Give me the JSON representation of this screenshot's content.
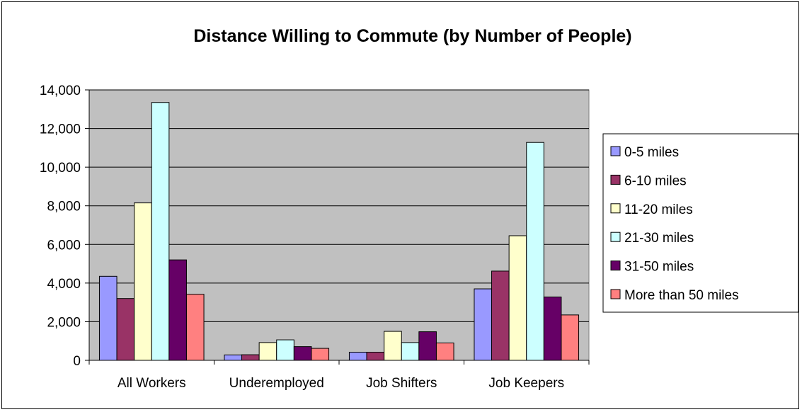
{
  "chart_data": {
    "type": "bar",
    "title": "Distance Willing to Commute (by Number of People)",
    "xlabel": "",
    "ylabel": "",
    "categories": [
      "All Workers",
      "Underemployed",
      "Job Shifters",
      "Job Keepers"
    ],
    "ylim": [
      0,
      14000
    ],
    "yticks": [
      0,
      2000,
      4000,
      6000,
      8000,
      10000,
      12000,
      14000
    ],
    "ytick_labels": [
      "0",
      "2,000",
      "4,000",
      "6,000",
      "8,000",
      "10,000",
      "12,000",
      "14,000"
    ],
    "grid": true,
    "legend_position": "right",
    "plot_background": "#c0c0c0",
    "series": [
      {
        "name": "0-5 miles",
        "color": "#9999ff",
        "values": [
          4350,
          280,
          420,
          3700
        ]
      },
      {
        "name": "6-10 miles",
        "color": "#993366",
        "values": [
          3200,
          290,
          420,
          4620
        ]
      },
      {
        "name": "11-20 miles",
        "color": "#ffffcc",
        "values": [
          8150,
          920,
          1500,
          6450
        ]
      },
      {
        "name": "21-30 miles",
        "color": "#ccffff",
        "values": [
          13350,
          1060,
          920,
          11280
        ]
      },
      {
        "name": "31-50 miles",
        "color": "#660066",
        "values": [
          5200,
          710,
          1480,
          3280
        ]
      },
      {
        "name": "More than 50 miles",
        "color": "#ff8080",
        "values": [
          3420,
          620,
          900,
          2350
        ]
      }
    ]
  }
}
